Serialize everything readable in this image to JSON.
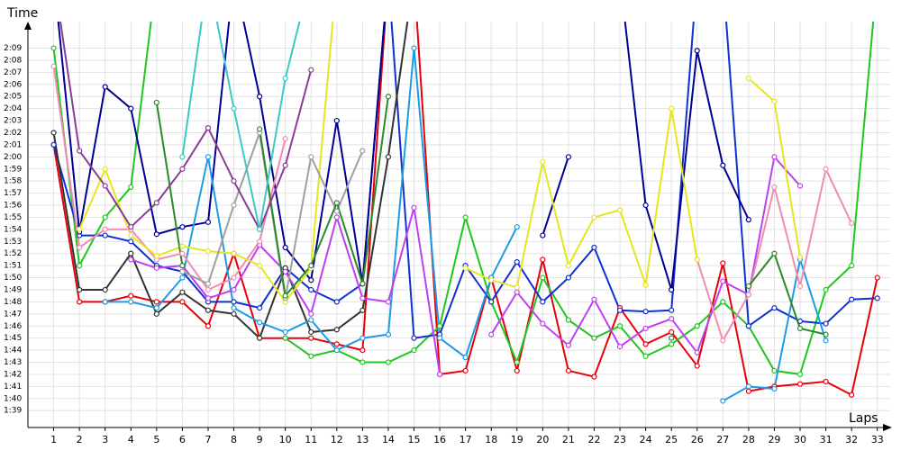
{
  "chart_data": {
    "type": "line",
    "ylabel": "Time",
    "xlabel": "Laps",
    "grid": true,
    "xlim": [
      0,
      33.5
    ],
    "ylim": [
      97.6,
      131.2
    ],
    "xticks": [
      1,
      2,
      3,
      4,
      5,
      6,
      7,
      8,
      9,
      10,
      11,
      12,
      13,
      14,
      15,
      16,
      17,
      18,
      19,
      20,
      21,
      22,
      23,
      24,
      25,
      26,
      27,
      28,
      29,
      30,
      31,
      32,
      33
    ],
    "yticks": [
      {
        "value": 99,
        "label": "1:39"
      },
      {
        "value": 100,
        "label": "1:40"
      },
      {
        "value": 101,
        "label": "1:41"
      },
      {
        "value": 102,
        "label": "1:42"
      },
      {
        "value": 103,
        "label": "1:43"
      },
      {
        "value": 104,
        "label": "1:44"
      },
      {
        "value": 105,
        "label": "1:45"
      },
      {
        "value": 106,
        "label": "1:46"
      },
      {
        "value": 107,
        "label": "1:47"
      },
      {
        "value": 108,
        "label": "1:48"
      },
      {
        "value": 109,
        "label": "1:49"
      },
      {
        "value": 110,
        "label": "1:50"
      },
      {
        "value": 111,
        "label": "1:51"
      },
      {
        "value": 112,
        "label": "1:52"
      },
      {
        "value": 113,
        "label": "1:53"
      },
      {
        "value": 114,
        "label": "1:54"
      },
      {
        "value": 115,
        "label": "1:55"
      },
      {
        "value": 116,
        "label": "1:56"
      },
      {
        "value": 117,
        "label": "1:57"
      },
      {
        "value": 118,
        "label": "1:58"
      },
      {
        "value": 119,
        "label": "1:59"
      },
      {
        "value": 120,
        "label": "2:00"
      },
      {
        "value": 121,
        "label": "2:01"
      },
      {
        "value": 122,
        "label": "2:02"
      },
      {
        "value": 123,
        "label": "2:03"
      },
      {
        "value": 124,
        "label": "2:04"
      },
      {
        "value": 125,
        "label": "2:05"
      },
      {
        "value": 126,
        "label": "2:06"
      },
      {
        "value": 127,
        "label": "2:07"
      },
      {
        "value": 128,
        "label": "2:08"
      },
      {
        "value": 129,
        "label": "2:09"
      }
    ],
    "x": [
      1,
      2,
      3,
      4,
      5,
      6,
      7,
      8,
      9,
      10,
      11,
      12,
      13,
      14,
      15,
      16,
      17,
      18,
      19,
      20,
      21,
      22,
      23,
      24,
      25,
      26,
      27,
      28,
      29,
      30,
      31,
      32,
      33
    ],
    "series": [
      {
        "color": "#e8000b",
        "values": [
          121,
          108,
          108,
          108.5,
          108,
          108,
          106,
          112,
          105,
          105,
          105,
          104.5,
          104,
          135,
          135,
          102,
          102.3,
          110,
          102.3,
          111.5,
          102.3,
          101.8,
          107.5,
          104.5,
          105.5,
          102.7,
          111.2,
          100.6,
          101,
          101.2,
          101.4,
          100.3,
          110
        ]
      },
      {
        "color": "#1ec81e",
        "values": [
          129,
          111,
          115,
          117.5,
          135,
          null,
          null,
          null,
          null,
          105,
          103.5,
          104,
          103,
          103,
          104,
          106,
          115,
          108,
          103,
          110,
          106.5,
          105,
          106,
          103.5,
          104.5,
          106,
          108,
          106,
          102.3,
          102,
          109,
          111,
          135
        ]
      },
      {
        "color": "#1030d0",
        "values": [
          121,
          113.5,
          113.5,
          113,
          111,
          110.5,
          108,
          108,
          107.5,
          110.8,
          109,
          108,
          109.5,
          135,
          105,
          105.3,
          111,
          108,
          111.3,
          108,
          110,
          112.5,
          107.3,
          107.2,
          107.3,
          135,
          135,
          106,
          107.5,
          106.4,
          106.2,
          108.2,
          108.3
        ]
      },
      {
        "color": "#000090",
        "values": [
          135,
          113.8,
          125.8,
          124,
          113.6,
          114.2,
          114.6,
          135,
          125,
          112.5,
          109.8,
          123,
          109.5,
          135,
          null,
          null,
          null,
          null,
          null,
          113.5,
          120,
          null,
          135,
          116,
          109,
          128.8,
          119.3,
          114.8,
          null,
          null,
          null,
          null,
          null
        ]
      },
      {
        "color": "#333333",
        "values": [
          122,
          109,
          109,
          112,
          107,
          108.8,
          107.3,
          107,
          105,
          110.8,
          105.5,
          105.7,
          107.3,
          120,
          135,
          null,
          null,
          null,
          null,
          null,
          null,
          null,
          null,
          null,
          null,
          null,
          null,
          null,
          null,
          null,
          null,
          null,
          null
        ]
      },
      {
        "color": "#1e9be6",
        "values": [
          null,
          null,
          108,
          108,
          107.5,
          110,
          120,
          107.5,
          106.3,
          105.5,
          106.5,
          104,
          105,
          105.3,
          129,
          105,
          103.4,
          110,
          114.2,
          null,
          null,
          null,
          null,
          null,
          null,
          null,
          99.8,
          101,
          100.8,
          111.5,
          104.8,
          null,
          null
        ]
      },
      {
        "color": "#c040f0",
        "values": [
          null,
          null,
          null,
          111.5,
          110.8,
          111,
          108.3,
          109,
          112.7,
          110.5,
          107,
          115,
          108.3,
          108,
          115.8,
          102,
          null,
          105.3,
          108.8,
          106.2,
          104.4,
          108.2,
          104.3,
          105.8,
          106.6,
          103.8,
          109.7,
          108.6,
          120,
          117.6,
          null,
          null,
          null
        ]
      },
      {
        "color": "#f08cb4",
        "values": [
          127.5,
          112.5,
          114,
          114,
          111.5,
          112,
          109,
          110,
          113,
          121.5,
          null,
          null,
          null,
          null,
          null,
          null,
          null,
          null,
          null,
          null,
          null,
          null,
          null,
          null,
          null,
          111.5,
          104.8,
          108.6,
          117.5,
          109.3,
          119,
          114.5,
          null
        ]
      },
      {
        "color": "#e6e61e",
        "values": [
          null,
          114,
          119,
          113.5,
          111.8,
          112.6,
          112.2,
          112,
          111,
          108,
          110.8,
          135,
          null,
          null,
          null,
          null,
          110.8,
          109.8,
          109.2,
          119.6,
          111,
          115,
          115.6,
          109.4,
          124,
          111.5,
          null,
          126.5,
          124.6,
          111.7,
          null,
          null,
          null
        ]
      },
      {
        "color": "#a0a0a0",
        "values": [
          null,
          null,
          null,
          null,
          null,
          110.5,
          109.5,
          116,
          122,
          108.3,
          120,
          115.5,
          120.5,
          null,
          null,
          null,
          null,
          null,
          null,
          null,
          null,
          null,
          null,
          null,
          null,
          null,
          null,
          null,
          null,
          null,
          null,
          null,
          null
        ]
      },
      {
        "color": "#2a8a2a",
        "values": [
          null,
          null,
          null,
          null,
          124.5,
          111,
          null,
          null,
          122.3,
          108.5,
          111,
          116.2,
          109.5,
          125,
          null,
          null,
          null,
          null,
          null,
          null,
          null,
          null,
          null,
          null,
          105,
          null,
          null,
          109.3,
          112,
          105.8,
          105.3,
          null,
          null
        ]
      },
      {
        "color": "#8c3c96",
        "values": [
          135,
          120.5,
          117.6,
          114.2,
          116.2,
          119,
          122.4,
          118,
          114,
          119.3,
          127.2,
          null,
          null,
          null,
          null,
          null,
          null,
          null,
          null,
          null,
          null,
          null,
          null,
          null,
          null,
          null,
          null,
          null,
          null,
          null,
          null,
          null,
          null
        ]
      },
      {
        "color": "#3cc8c8",
        "values": [
          null,
          null,
          null,
          null,
          null,
          120,
          135,
          124,
          114,
          126.5,
          135,
          null,
          null,
          null,
          null,
          null,
          null,
          null,
          null,
          null,
          null,
          null,
          null,
          null,
          null,
          null,
          null,
          null,
          null,
          null,
          null,
          null,
          null
        ]
      }
    ]
  }
}
